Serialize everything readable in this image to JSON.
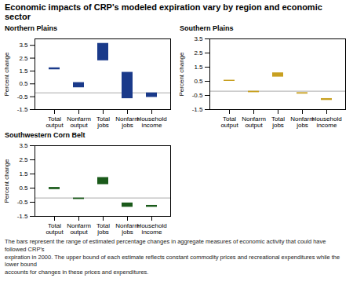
{
  "title": "Economic impacts of CRP's modeled expiration vary by region and economic sector",
  "footnote": "The bars represent the range of estimated percentage changes in aggregate measures of economic activity that could have followed CRP's\nexpiration in 2000.  The upper bound of each estimate reflects constant commodity prices and recreational expenditures while the lower bound\naccounts for changes in these prices and expenditures.",
  "chart_data": [
    {
      "type": "bar",
      "title": "Northern Plains",
      "ylabel": "Percent change",
      "categories": [
        "Total\noutput",
        "Nonfarm\noutput",
        "Total\njobs",
        "Nonfarm\njobs",
        "Household\nincome"
      ],
      "lower": [
        1.6,
        0.2,
        2.3,
        -0.65,
        -0.55
      ],
      "upper": [
        1.75,
        0.6,
        3.65,
        1.4,
        -0.2
      ],
      "color": "#1a3a8a",
      "hline": -0.2,
      "ylim": [
        -1.5,
        4.0
      ],
      "yticks": [
        -1.5,
        -0.5,
        0.5,
        1.5,
        2.5,
        3.5
      ],
      "grid": false
    },
    {
      "type": "bar",
      "title": "Southern Plains",
      "ylabel": "Percent change",
      "categories": [
        "Total\noutput",
        "Nonfarm\noutput",
        "Total\njobs",
        "Nonfarm\njobs",
        "Household\nincome"
      ],
      "lower": [
        0.5,
        -0.3,
        0.8,
        -0.4,
        -0.85
      ],
      "upper": [
        0.58,
        -0.2,
        1.1,
        -0.3,
        -0.72
      ],
      "color": "#c8a020",
      "hline": -0.2,
      "ylim": [
        -1.5,
        3.5
      ],
      "yticks": [
        -1.5,
        -0.5,
        0.5,
        1.5,
        2.5,
        3.5
      ],
      "grid": false
    },
    {
      "type": "bar",
      "title": "Southwestern Corn Belt",
      "ylabel": "Percent change",
      "categories": [
        "Total\noutput",
        "Nonfarm\noutput",
        "Total\njobs",
        "Nonfarm\njobs",
        "Household\nincome"
      ],
      "lower": [
        0.4,
        -0.3,
        0.75,
        -0.85,
        -0.85
      ],
      "upper": [
        0.55,
        -0.2,
        1.25,
        -0.55,
        -0.72
      ],
      "color": "#1a5a1a",
      "hline": -0.2,
      "ylim": [
        -1.5,
        3.5
      ],
      "yticks": [
        -1.5,
        -0.5,
        0.5,
        1.5,
        2.5,
        3.5
      ],
      "grid": false
    }
  ]
}
